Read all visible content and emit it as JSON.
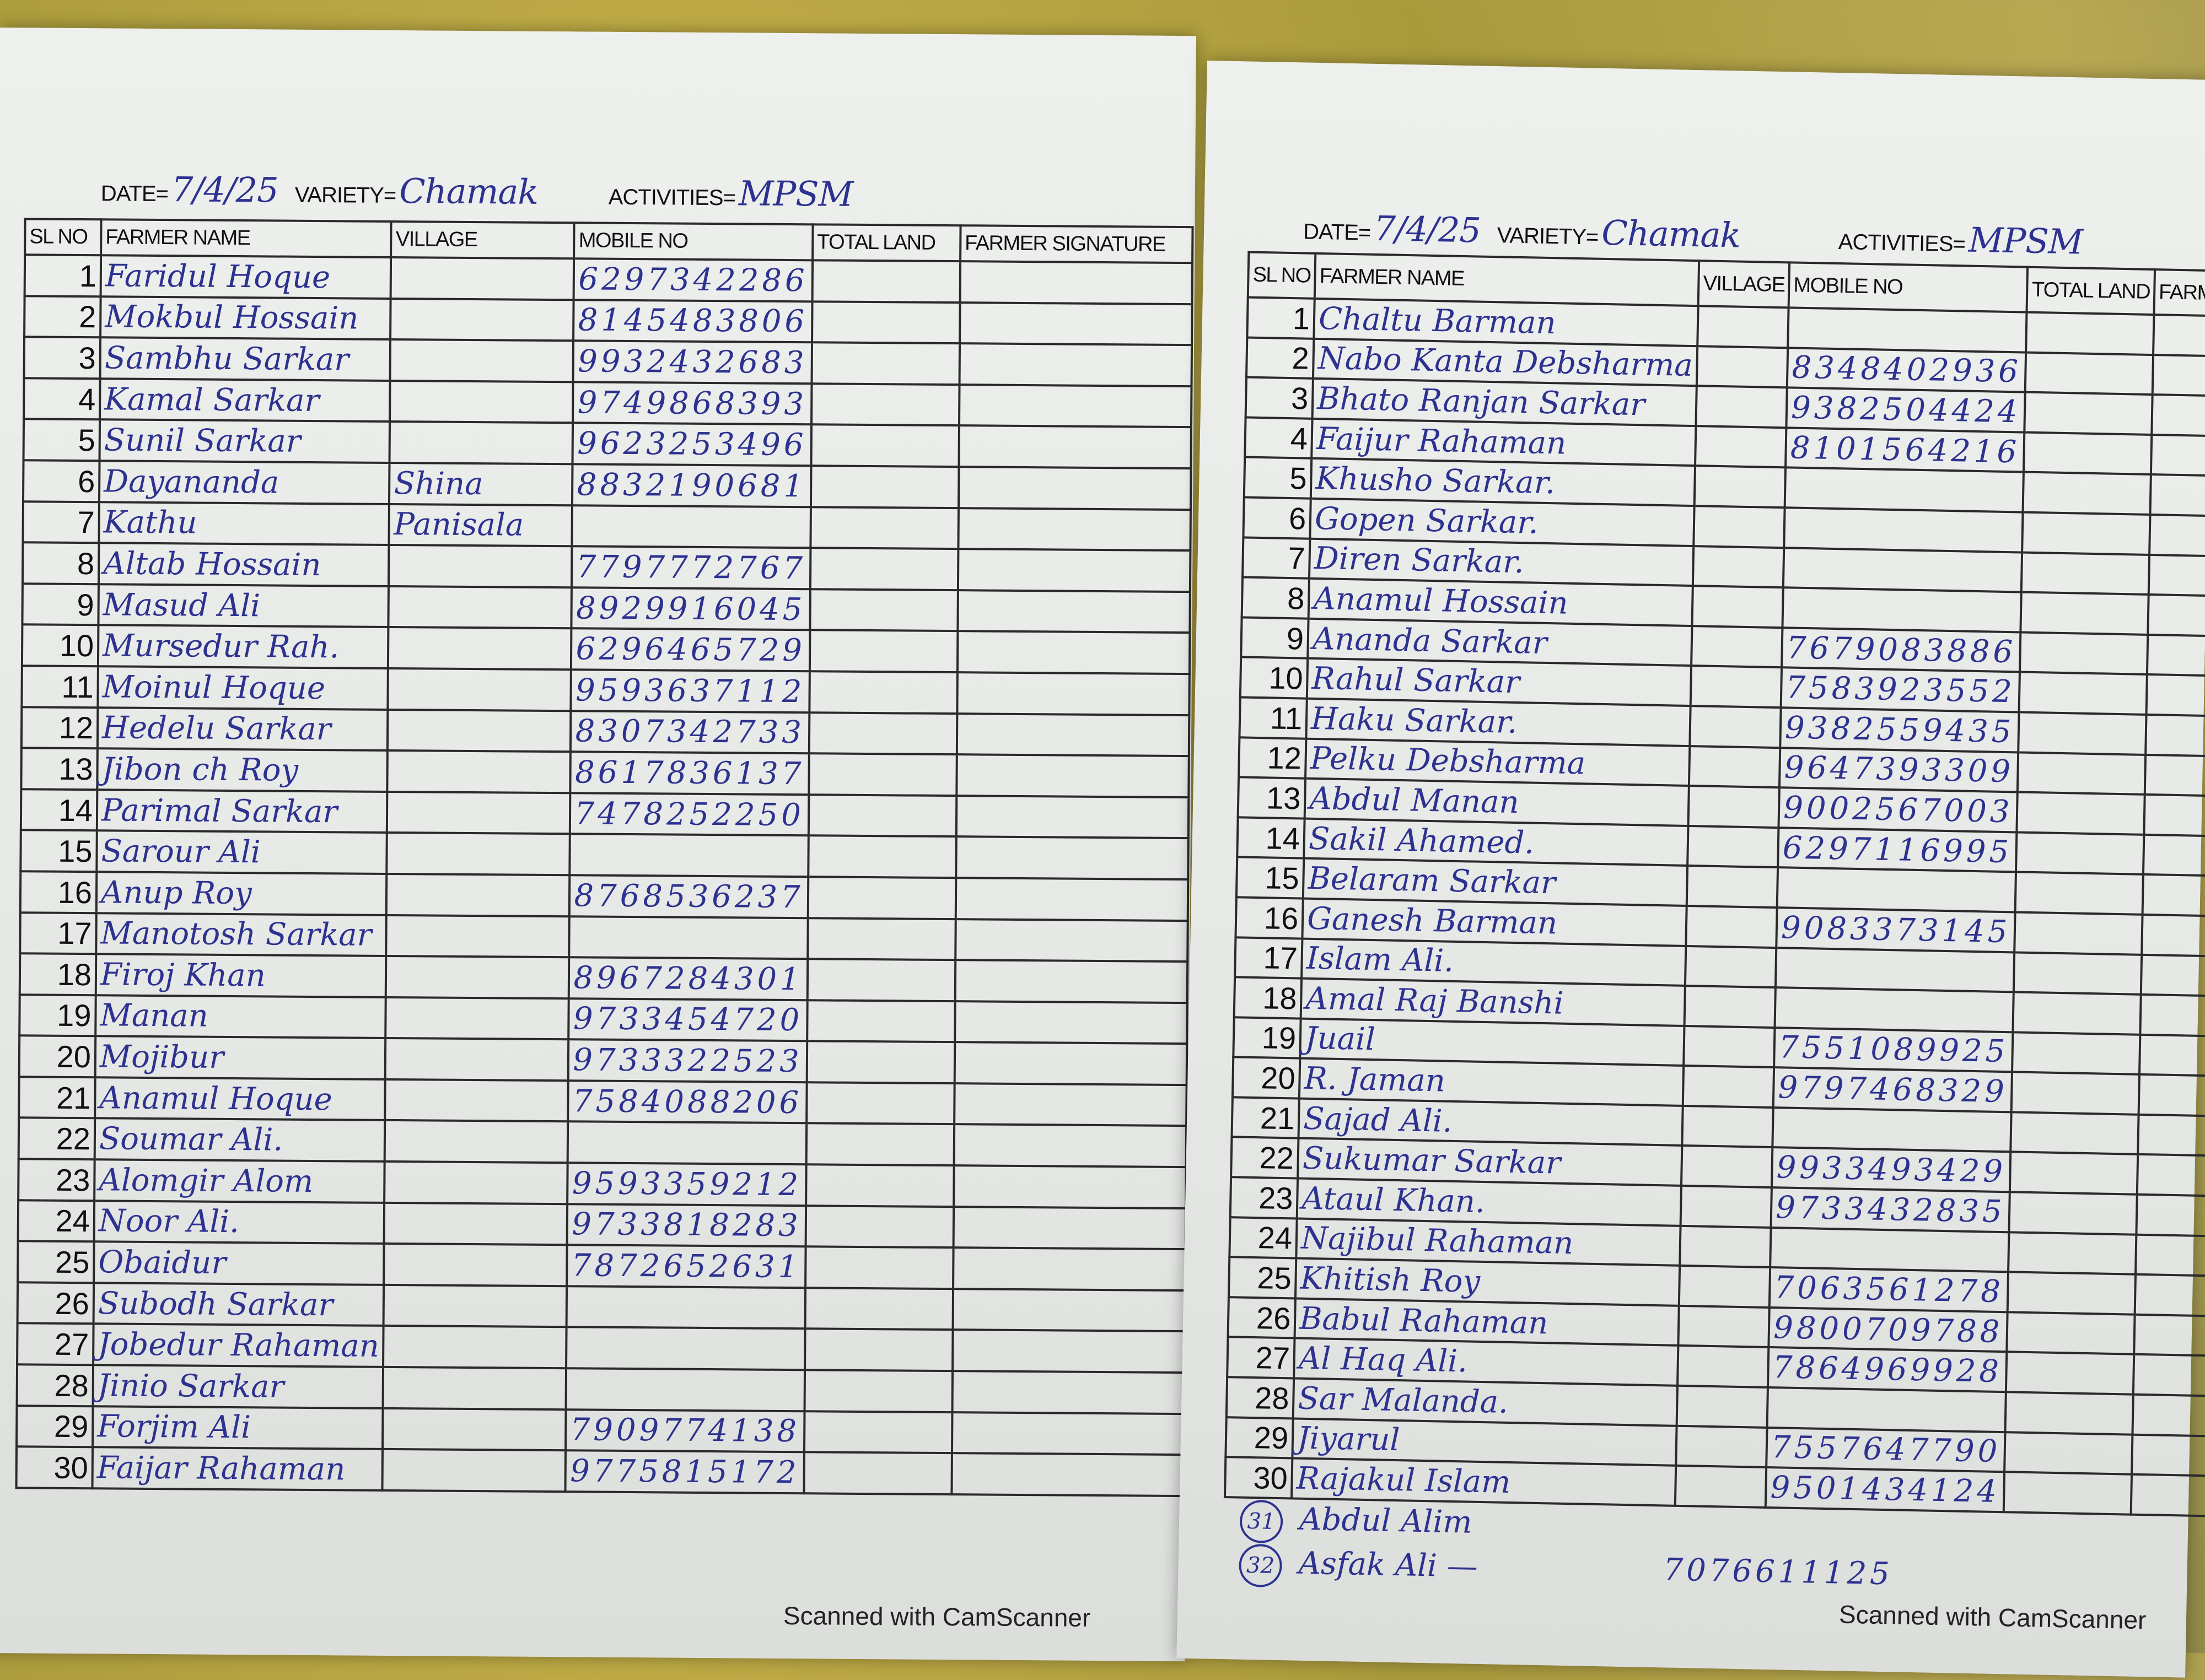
{
  "header_labels": {
    "date": "DATE=",
    "variety": "VARIETY=",
    "activities": "ACTIVITIES=",
    "columns": [
      "SL NO",
      "FARMER NAME",
      "VILLAGE",
      "MOBILE NO",
      "TOTAL LAND",
      "FARMER SIGNATURE"
    ],
    "columns_right_truncated": [
      "SL NO",
      "FARMER NAME",
      "VILLAGE",
      "MOBILE NO",
      "TOTAL LAND",
      "FARMER SIGNATU"
    ]
  },
  "ink_color": "#2d3290",
  "left_sheet": {
    "date": "7/4/25",
    "variety": "Chamak",
    "activities": "MPSM",
    "rows": [
      {
        "sl": "1",
        "name": "Faridul Hoque",
        "village": "",
        "mobile": "6297342286"
      },
      {
        "sl": "2",
        "name": "Mokbul Hossain",
        "village": "",
        "mobile": "8145483806"
      },
      {
        "sl": "3",
        "name": "Sambhu Sarkar",
        "village": "",
        "mobile": "9932432683"
      },
      {
        "sl": "4",
        "name": "Kamal Sarkar",
        "village": "",
        "mobile": "9749868393"
      },
      {
        "sl": "5",
        "name": "Sunil Sarkar",
        "village": "",
        "mobile": "9623253496"
      },
      {
        "sl": "6",
        "name": "Dayananda",
        "village": "Shina",
        "mobile": "8832190681"
      },
      {
        "sl": "7",
        "name": "Kathu",
        "village": "Panisala",
        "mobile": ""
      },
      {
        "sl": "8",
        "name": "Altab Hossain",
        "village": "",
        "mobile": "7797772767"
      },
      {
        "sl": "9",
        "name": "Masud Ali",
        "village": "",
        "mobile": "8929916045"
      },
      {
        "sl": "10",
        "name": "Mursedur Rah.",
        "village": "",
        "mobile": "6296465729"
      },
      {
        "sl": "11",
        "name": "Moinul Hoque",
        "village": "",
        "mobile": "9593637112"
      },
      {
        "sl": "12",
        "name": "Hedelu Sarkar",
        "village": "",
        "mobile": "8307342733"
      },
      {
        "sl": "13",
        "name": "Jibon ch Roy",
        "village": "",
        "mobile": "8617836137"
      },
      {
        "sl": "14",
        "name": "Parimal Sarkar",
        "village": "",
        "mobile": "7478252250"
      },
      {
        "sl": "15",
        "name": "Sarour Ali",
        "village": "",
        "mobile": ""
      },
      {
        "sl": "16",
        "name": "Anup Roy",
        "village": "",
        "mobile": "8768536237"
      },
      {
        "sl": "17",
        "name": "Manotosh Sarkar",
        "village": "",
        "mobile": ""
      },
      {
        "sl": "18",
        "name": "Firoj Khan",
        "village": "",
        "mobile": "8967284301"
      },
      {
        "sl": "19",
        "name": "Manan",
        "village": "",
        "mobile": "9733454720"
      },
      {
        "sl": "20",
        "name": "Mojibur",
        "village": "",
        "mobile": "9733322523"
      },
      {
        "sl": "21",
        "name": "Anamul Hoque",
        "village": "",
        "mobile": "7584088206"
      },
      {
        "sl": "22",
        "name": "Soumar Ali.",
        "village": "",
        "mobile": ""
      },
      {
        "sl": "23",
        "name": "Alomgir Alom",
        "village": "",
        "mobile": "9593359212"
      },
      {
        "sl": "24",
        "name": "Noor Ali.",
        "village": "",
        "mobile": "9733818283"
      },
      {
        "sl": "25",
        "name": "Obaidur",
        "village": "",
        "mobile": "7872652631"
      },
      {
        "sl": "26",
        "name": "Subodh Sarkar",
        "village": "",
        "mobile": ""
      },
      {
        "sl": "27",
        "name": "Jobedur Rahaman",
        "village": "",
        "mobile": ""
      },
      {
        "sl": "28",
        "name": "Jinio Sarkar",
        "village": "",
        "mobile": ""
      },
      {
        "sl": "29",
        "name": "Forjim Ali",
        "village": "",
        "mobile": "7909774138"
      },
      {
        "sl": "30",
        "name": "Faijar Rahaman",
        "village": "",
        "mobile": "9775815172"
      }
    ],
    "footer": "Scanned with CamScanner"
  },
  "right_sheet": {
    "date": "7/4/25",
    "variety": "Chamak",
    "activities": "MPSM",
    "rows": [
      {
        "sl": "1",
        "name": "Chaltu Barman",
        "village": "",
        "mobile": ""
      },
      {
        "sl": "2",
        "name": "Nabo Kanta Debsharma",
        "village": "",
        "mobile": "8348402936"
      },
      {
        "sl": "3",
        "name": "Bhato Ranjan Sarkar",
        "village": "",
        "mobile": "9382504424"
      },
      {
        "sl": "4",
        "name": "Faijur Rahaman",
        "village": "",
        "mobile": "8101564216"
      },
      {
        "sl": "5",
        "name": "Khusho Sarkar.",
        "village": "",
        "mobile": ""
      },
      {
        "sl": "6",
        "name": "Gopen Sarkar.",
        "village": "",
        "mobile": ""
      },
      {
        "sl": "7",
        "name": "Diren Sarkar.",
        "village": "",
        "mobile": ""
      },
      {
        "sl": "8",
        "name": "Anamul Hossain",
        "village": "",
        "mobile": ""
      },
      {
        "sl": "9",
        "name": "Ananda Sarkar",
        "village": "",
        "mobile": "7679083886"
      },
      {
        "sl": "10",
        "name": "Rahul Sarkar",
        "village": "",
        "mobile": "7583923552"
      },
      {
        "sl": "11",
        "name": "Haku Sarkar.",
        "village": "",
        "mobile": "9382559435"
      },
      {
        "sl": "12",
        "name": "Pelku Debsharma",
        "village": "",
        "mobile": "9647393309"
      },
      {
        "sl": "13",
        "name": "Abdul Manan",
        "village": "",
        "mobile": "9002567003"
      },
      {
        "sl": "14",
        "name": "Sakil Ahamed.",
        "village": "",
        "mobile": "6297116995"
      },
      {
        "sl": "15",
        "name": "Belaram Sarkar",
        "village": "",
        "mobile": ""
      },
      {
        "sl": "16",
        "name": "Ganesh Barman",
        "village": "",
        "mobile": "9083373145"
      },
      {
        "sl": "17",
        "name": "Islam Ali.",
        "village": "",
        "mobile": ""
      },
      {
        "sl": "18",
        "name": "Amal Raj Banshi",
        "village": "",
        "mobile": ""
      },
      {
        "sl": "19",
        "name": "Juail",
        "village": "",
        "mobile": "7551089925"
      },
      {
        "sl": "20",
        "name": "R. Jaman",
        "village": "",
        "mobile": "9797468329"
      },
      {
        "sl": "21",
        "name": "Sajad Ali.",
        "village": "",
        "mobile": ""
      },
      {
        "sl": "22",
        "name": "Sukumar Sarkar",
        "village": "",
        "mobile": "9933493429"
      },
      {
        "sl": "23",
        "name": "Ataul Khan.",
        "village": "",
        "mobile": "9733432835"
      },
      {
        "sl": "24",
        "name": "Najibul Rahaman",
        "village": "",
        "mobile": ""
      },
      {
        "sl": "25",
        "name": "Khitish Roy",
        "village": "",
        "mobile": "7063561278"
      },
      {
        "sl": "26",
        "name": "Babul Rahaman",
        "village": "",
        "mobile": "9800709788"
      },
      {
        "sl": "27",
        "name": "Al Haq Ali.",
        "village": "",
        "mobile": "7864969928"
      },
      {
        "sl": "28",
        "name": "Sar Malanda.",
        "village": "",
        "mobile": ""
      },
      {
        "sl": "29",
        "name": "Jiyarul",
        "village": "",
        "mobile": "7557647790"
      },
      {
        "sl": "30",
        "name": "Rajakul Islam",
        "village": "",
        "mobile": "9501434124"
      }
    ],
    "extra_rows": [
      {
        "sl": "31",
        "name": "Abdul Alim",
        "mobile": ""
      },
      {
        "sl": "32",
        "name": "Asfak Ali —",
        "mobile": "7076611125"
      }
    ],
    "footer": "Scanned with CamScanner"
  }
}
